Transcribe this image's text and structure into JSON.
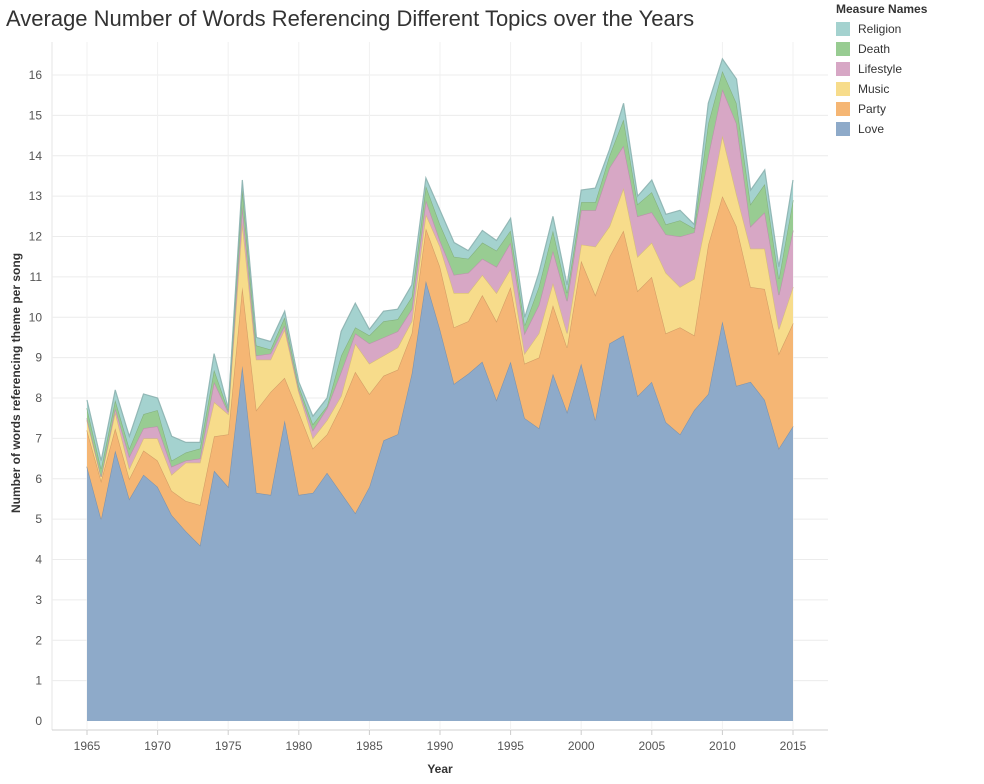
{
  "chart_data": {
    "type": "area",
    "stacked": true,
    "title": "Average Number of Words Referencing Different Topics over the Years",
    "xlabel": "Year",
    "ylabel": "Number of words referencing theme per song",
    "xlim": [
      1965,
      2015
    ],
    "ylim": [
      0,
      16
    ],
    "x_ticks": [
      1965,
      1970,
      1975,
      1980,
      1985,
      1990,
      1995,
      2000,
      2005,
      2010,
      2015
    ],
    "y_ticks": [
      0,
      1,
      2,
      3,
      4,
      5,
      6,
      7,
      8,
      9,
      10,
      11,
      12,
      13,
      14,
      15,
      16
    ],
    "legend_title": "Measure Names",
    "legend_position": "top-right",
    "x": [
      1965,
      1966,
      1967,
      1968,
      1969,
      1970,
      1971,
      1972,
      1973,
      1974,
      1975,
      1976,
      1977,
      1978,
      1979,
      1980,
      1981,
      1982,
      1983,
      1984,
      1985,
      1986,
      1987,
      1988,
      1989,
      1990,
      1991,
      1992,
      1993,
      1994,
      1995,
      1996,
      1997,
      1998,
      1999,
      2000,
      2001,
      2002,
      2003,
      2004,
      2005,
      2006,
      2007,
      2008,
      2009,
      2010,
      2011,
      2012,
      2013,
      2014,
      2015
    ],
    "series": [
      {
        "name": "Love",
        "color": "#8eaac9",
        "values": [
          6.3,
          5.0,
          6.7,
          5.5,
          6.1,
          5.8,
          5.1,
          4.7,
          4.35,
          6.2,
          5.8,
          8.8,
          5.65,
          5.6,
          7.45,
          5.6,
          5.65,
          6.15,
          5.65,
          5.15,
          5.8,
          6.95,
          7.1,
          8.6,
          10.9,
          9.7,
          8.35,
          8.6,
          8.9,
          7.95,
          8.9,
          7.5,
          7.25,
          8.6,
          7.65,
          8.85,
          7.45,
          9.35,
          9.55,
          8.05,
          8.4,
          7.4,
          7.1,
          7.7,
          8.1,
          9.9,
          8.3,
          8.4,
          7.95,
          6.75,
          7.3
        ]
      },
      {
        "name": "Party",
        "color": "#f5b674",
        "values": [
          0.9,
          0.95,
          0.55,
          0.5,
          0.6,
          0.65,
          0.6,
          0.75,
          1.0,
          0.85,
          1.3,
          1.95,
          2.05,
          2.55,
          1.05,
          2.05,
          1.1,
          0.95,
          2.15,
          3.5,
          2.3,
          1.6,
          1.6,
          1.0,
          1.3,
          1.55,
          1.4,
          1.3,
          1.65,
          1.95,
          1.85,
          1.35,
          1.75,
          1.7,
          1.6,
          2.55,
          3.1,
          2.15,
          2.6,
          2.6,
          2.6,
          2.2,
          2.65,
          1.85,
          3.7,
          3.1,
          3.95,
          2.35,
          2.75,
          2.35,
          2.55
        ]
      },
      {
        "name": "Music",
        "color": "#f7dc8b",
        "values": [
          0.25,
          0.1,
          0.4,
          0.25,
          0.3,
          0.55,
          0.4,
          0.95,
          1.05,
          0.85,
          0.5,
          1.6,
          1.25,
          0.8,
          1.2,
          0.5,
          0.25,
          0.35,
          0.25,
          0.7,
          0.75,
          0.5,
          0.55,
          0.3,
          0.35,
          0.5,
          0.85,
          0.7,
          0.5,
          0.7,
          0.45,
          0.25,
          0.6,
          0.55,
          0.35,
          0.4,
          1.2,
          0.75,
          1.05,
          0.85,
          0.85,
          1.5,
          1.0,
          1.4,
          0.85,
          1.5,
          0.8,
          0.95,
          1.0,
          0.6,
          0.9
        ]
      },
      {
        "name": "Lifestyle",
        "color": "#d7a7c5",
        "values": [
          0.05,
          0.0,
          0.1,
          0.3,
          0.25,
          0.3,
          0.2,
          0.05,
          0.1,
          0.5,
          0.05,
          0.4,
          0.1,
          0.15,
          0.1,
          0.05,
          0.2,
          0.3,
          0.6,
          0.25,
          0.5,
          0.45,
          0.4,
          0.3,
          0.35,
          0.15,
          0.45,
          0.5,
          0.4,
          0.65,
          0.65,
          0.5,
          0.7,
          0.8,
          0.8,
          0.85,
          0.9,
          1.45,
          1.05,
          1.0,
          0.75,
          0.95,
          1.25,
          1.15,
          1.35,
          1.15,
          1.75,
          0.55,
          0.9,
          0.85,
          1.4
        ]
      },
      {
        "name": "Death",
        "color": "#98cc92",
        "values": [
          0.25,
          0.2,
          0.2,
          0.2,
          0.35,
          0.4,
          0.15,
          0.2,
          0.25,
          0.3,
          0.05,
          0.45,
          0.25,
          0.1,
          0.2,
          0.1,
          0.15,
          0.05,
          0.4,
          0.15,
          0.2,
          0.4,
          0.3,
          0.3,
          0.35,
          0.4,
          0.45,
          0.35,
          0.4,
          0.4,
          0.3,
          0.2,
          0.45,
          0.5,
          0.2,
          0.2,
          0.2,
          0.3,
          0.65,
          0.3,
          0.5,
          0.25,
          0.4,
          0.1,
          0.8,
          0.45,
          0.5,
          0.55,
          0.7,
          0.4,
          0.75
        ]
      },
      {
        "name": "Religion",
        "color": "#a4d2cf",
        "values": [
          0.2,
          0.2,
          0.25,
          0.3,
          0.5,
          0.3,
          0.6,
          0.25,
          0.15,
          0.4,
          0.05,
          0.2,
          0.2,
          0.2,
          0.15,
          0.1,
          0.2,
          0.2,
          0.6,
          0.6,
          0.15,
          0.25,
          0.25,
          0.3,
          0.2,
          0.35,
          0.35,
          0.2,
          0.3,
          0.25,
          0.3,
          0.2,
          0.35,
          0.35,
          0.2,
          0.3,
          0.35,
          0.15,
          0.4,
          0.2,
          0.3,
          0.25,
          0.25,
          0.1,
          0.5,
          0.3,
          0.6,
          0.35,
          0.35,
          0.3,
          0.5
        ]
      }
    ]
  }
}
